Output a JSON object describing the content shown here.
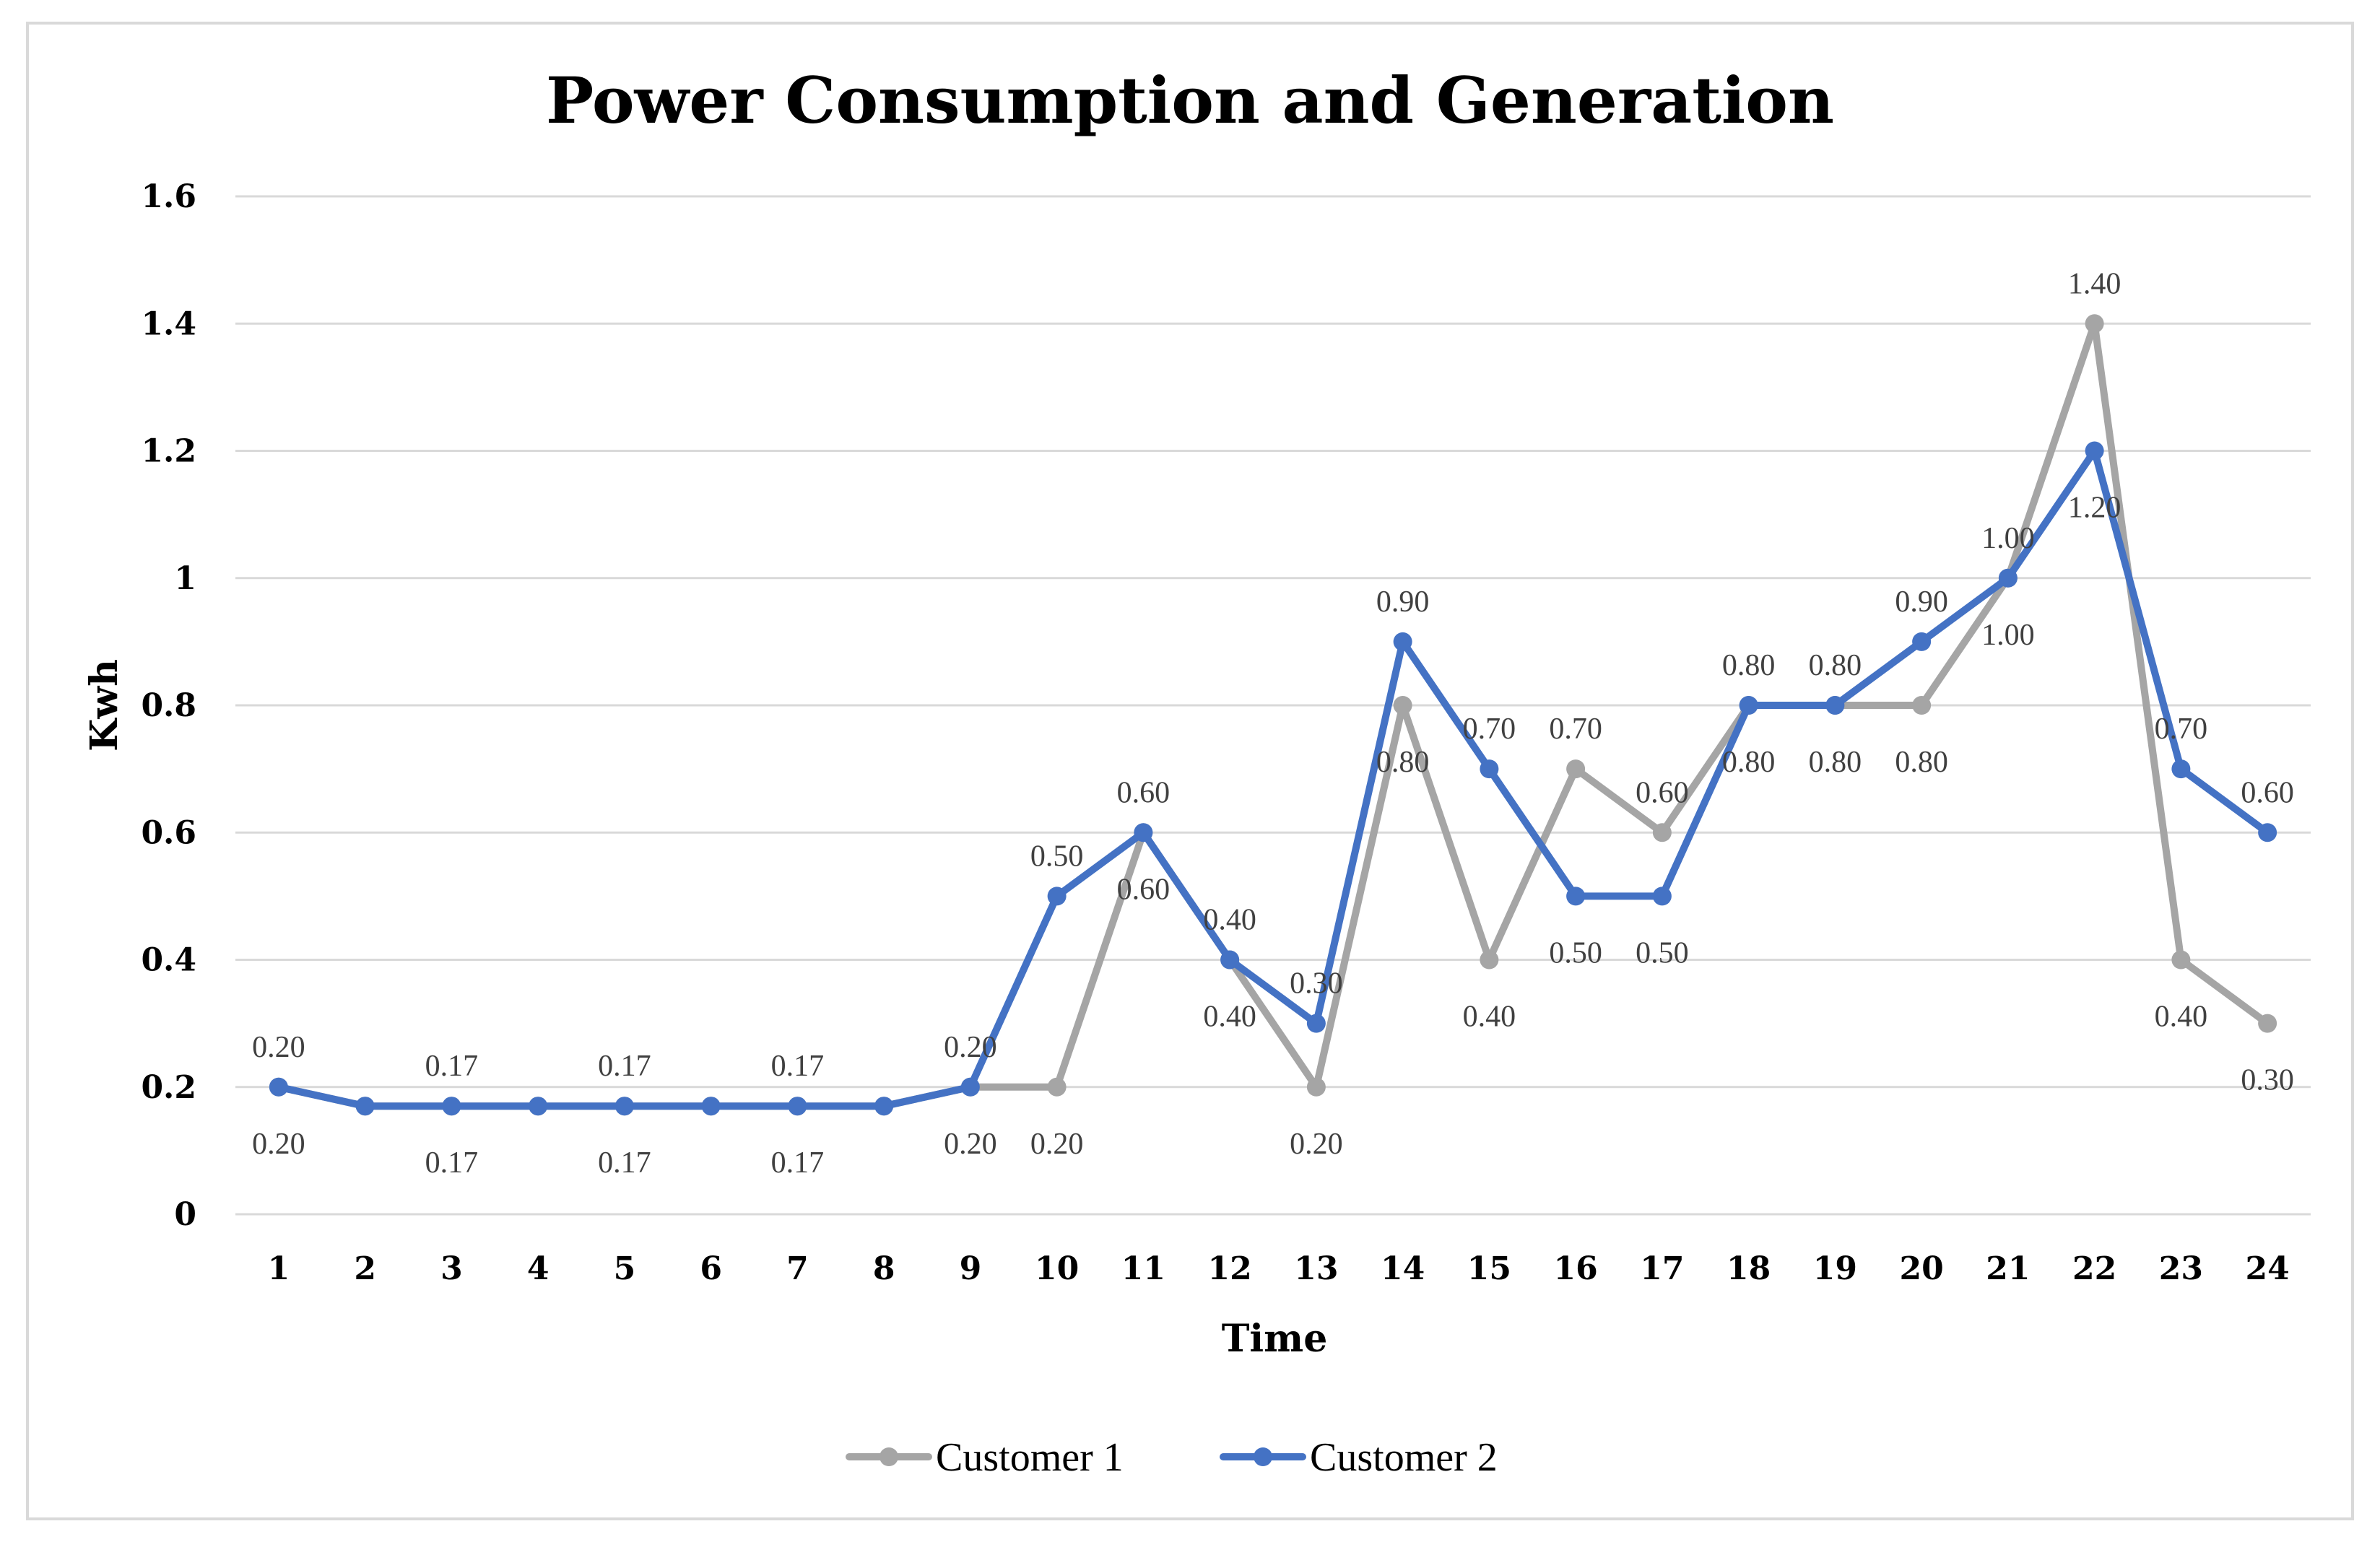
{
  "chart_data": {
    "type": "line",
    "title": "Power Consumption and Generation",
    "xlabel": "Time",
    "ylabel": "Kwh",
    "categories": [
      "1",
      "2",
      "3",
      "4",
      "5",
      "6",
      "7",
      "8",
      "9",
      "10",
      "11",
      "12",
      "13",
      "14",
      "15",
      "16",
      "17",
      "18",
      "19",
      "20",
      "21",
      "22",
      "23",
      "24"
    ],
    "y_ticks": [
      "0",
      "0.2",
      "0.4",
      "0.6",
      "0.8",
      "1",
      "1.2",
      "1.4",
      "1.6"
    ],
    "ylim": [
      0,
      1.6
    ],
    "grid": "horizontal",
    "legend": "bottom",
    "series": [
      {
        "name": "Customer 1",
        "color": "#a5a5a5",
        "values": [
          0.2,
          0.17,
          0.17,
          0.17,
          0.17,
          0.17,
          0.17,
          0.17,
          0.2,
          0.2,
          0.6,
          0.4,
          0.2,
          0.8,
          0.4,
          0.7,
          0.6,
          0.8,
          0.8,
          0.8,
          1.0,
          1.4,
          0.4,
          0.3
        ],
        "labels": [
          "0.20",
          "",
          "0.17",
          "",
          "0.17",
          "",
          "0.17",
          "",
          "0.20",
          "0.20",
          "0.60",
          "0.40",
          "0.20",
          "0.80",
          "0.40",
          "0.70",
          "0.60",
          "0.80",
          "0.80",
          "0.80",
          "1.00",
          "1.40",
          "0.40",
          "0.30"
        ]
      },
      {
        "name": "Customer 2",
        "color": "#4472c4",
        "values": [
          0.2,
          0.17,
          0.17,
          0.17,
          0.17,
          0.17,
          0.17,
          0.17,
          0.2,
          0.5,
          0.6,
          0.4,
          0.3,
          0.9,
          0.7,
          0.5,
          0.5,
          0.8,
          0.8,
          0.9,
          1.0,
          1.2,
          0.7,
          0.6
        ],
        "labels": [
          "0.20",
          "",
          "0.17",
          "",
          "0.17",
          "",
          "0.17",
          "",
          "0.20",
          "0.50",
          "0.60",
          "0.40",
          "0.30",
          "0.90",
          "0.70",
          "0.50",
          "0.50",
          "0.80",
          "0.80",
          "0.90",
          "1.00",
          "1.20",
          "0.70",
          "0.60"
        ]
      }
    ]
  }
}
